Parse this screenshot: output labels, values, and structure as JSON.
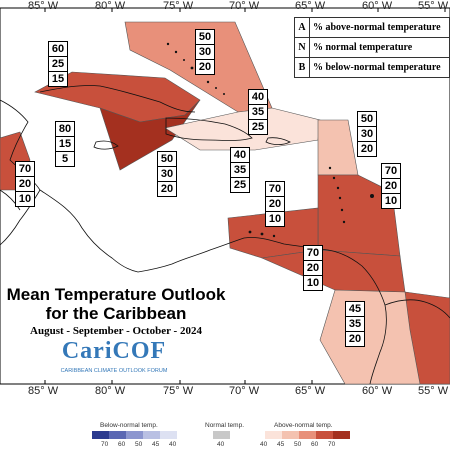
{
  "map": {
    "top_lon_labels": [
      "85° W",
      "80° W",
      "75° W",
      "70° W",
      "65° W",
      "60° W",
      "55° W"
    ],
    "bottom_lon_labels": [
      "85° W",
      "80° W",
      "75° W",
      "70° W",
      "65° W",
      "60° W",
      "55° W"
    ]
  },
  "legend_key": {
    "rows": [
      {
        "letter": "A",
        "text": "% above-normal temperature"
      },
      {
        "letter": "N",
        "text": "% normal temperature"
      },
      {
        "letter": "B",
        "text": "% below-normal temperature"
      }
    ]
  },
  "regions": [
    {
      "id": "greater-antilles-west",
      "above": "60",
      "normal": "25",
      "below": "15",
      "color": "#c8503c"
    },
    {
      "id": "bahamas",
      "above": "50",
      "normal": "30",
      "below": "20",
      "color": "#e8907a"
    },
    {
      "id": "cuba-central",
      "above": "80",
      "normal": "15",
      "below": "5",
      "color": "#a4301f"
    },
    {
      "id": "central-america-west",
      "above": "70",
      "normal": "20",
      "below": "10",
      "color": "#c8503c"
    },
    {
      "id": "hispaniola",
      "above": "40",
      "normal": "35",
      "below": "25",
      "color": "#fbe3da"
    },
    {
      "id": "western-caribbean",
      "above": "50",
      "normal": "30",
      "below": "20",
      "color": "#e8907a"
    },
    {
      "id": "puerto-rico",
      "above": "40",
      "normal": "35",
      "below": "25",
      "color": "#fbe3da"
    },
    {
      "id": "northern-leewards",
      "above": "50",
      "normal": "30",
      "below": "20",
      "color": "#f4c2b0"
    },
    {
      "id": "eastern-caribbean",
      "above": "70",
      "normal": "20",
      "below": "10",
      "color": "#c8503c"
    },
    {
      "id": "abc-islands",
      "above": "70",
      "normal": "20",
      "below": "10",
      "color": "#c8503c"
    },
    {
      "id": "trinidad-venezuela",
      "above": "70",
      "normal": "20",
      "below": "10",
      "color": "#c8503c"
    },
    {
      "id": "guianas",
      "above": "45",
      "normal": "35",
      "below": "20",
      "color": "#f4c2b0"
    }
  ],
  "title": {
    "line1": "Mean Temperature Outlook",
    "line2": "for the Caribbean",
    "period": "August - September - October - 2024"
  },
  "logo": {
    "name": "CariCOF",
    "tagline": "CARIBBEAN CLIMATE OUTLOOK FORUM"
  },
  "colorbar": {
    "below_label": "Below-normal temp.",
    "normal_label": "Normal temp.",
    "above_label": "Above-normal temp.",
    "below": [
      {
        "tick": "70",
        "color": "#2b3a8f"
      },
      {
        "tick": "60",
        "color": "#5a67b3"
      },
      {
        "tick": "50",
        "color": "#8c96cf"
      },
      {
        "tick": "45",
        "color": "#b9c0e3"
      },
      {
        "tick": "40",
        "color": "#dde1f2"
      }
    ],
    "normal": {
      "tick": "40",
      "color": "#c8c8c8"
    },
    "above": [
      {
        "tick": "40",
        "color": "#fbe3da"
      },
      {
        "tick": "45",
        "color": "#f4c2b0"
      },
      {
        "tick": "50",
        "color": "#e8907a"
      },
      {
        "tick": "60",
        "color": "#c8503c"
      },
      {
        "tick": "70",
        "color": "#a4301f"
      }
    ]
  }
}
